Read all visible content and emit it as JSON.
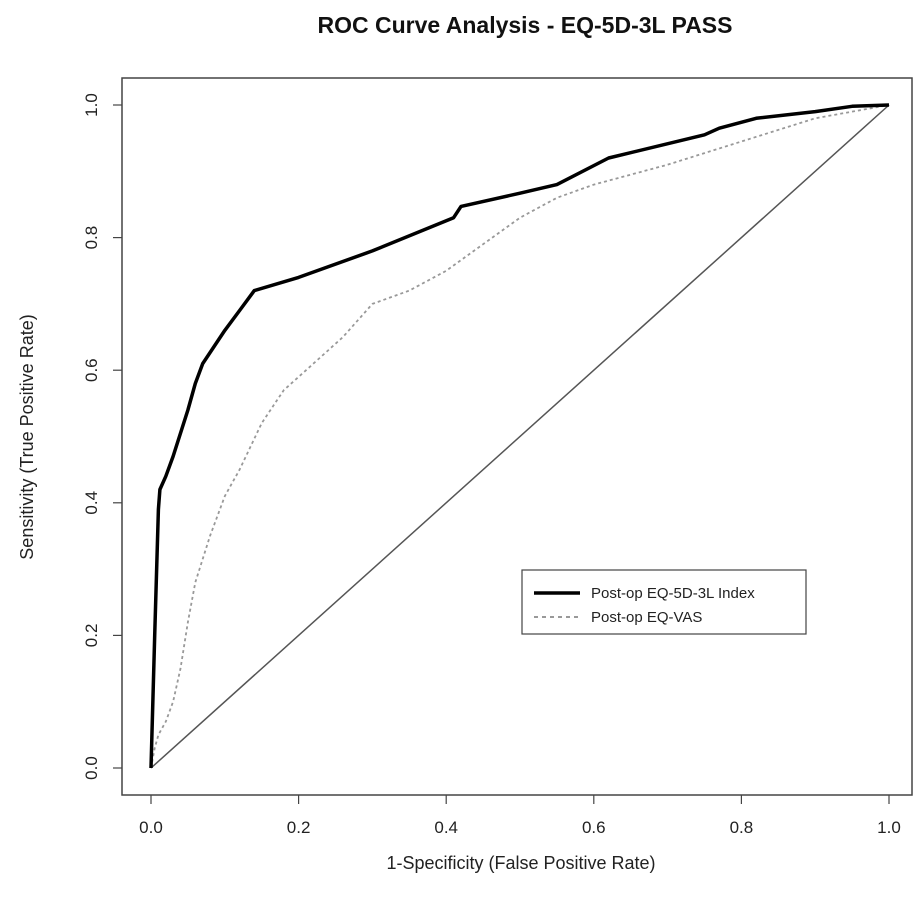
{
  "chart_data": {
    "type": "line",
    "title": "ROC Curve Analysis - EQ-5D-3L PASS",
    "xlabel": "1-Specificity (False Positive Rate)",
    "ylabel": "Sensitivity (True Positive Rate)",
    "xlim": [
      0,
      1
    ],
    "ylim": [
      0,
      1
    ],
    "x_ticks": [
      "0.0",
      "0.2",
      "0.4",
      "0.6",
      "0.8",
      "1.0"
    ],
    "y_ticks": [
      "0.0",
      "0.2",
      "0.4",
      "0.6",
      "0.8",
      "1.0"
    ],
    "grid": false,
    "legend_position": "center-right",
    "series": [
      {
        "name": "Post-op EQ-5D-3L Index",
        "style": "solid",
        "color": "#000000",
        "points": [
          [
            0.0,
            0.0
          ],
          [
            0.005,
            0.2
          ],
          [
            0.01,
            0.39
          ],
          [
            0.012,
            0.42
          ],
          [
            0.02,
            0.44
          ],
          [
            0.03,
            0.47
          ],
          [
            0.05,
            0.54
          ],
          [
            0.06,
            0.58
          ],
          [
            0.07,
            0.61
          ],
          [
            0.1,
            0.66
          ],
          [
            0.12,
            0.69
          ],
          [
            0.14,
            0.72
          ],
          [
            0.2,
            0.74
          ],
          [
            0.3,
            0.78
          ],
          [
            0.41,
            0.83
          ],
          [
            0.42,
            0.847
          ],
          [
            0.5,
            0.867
          ],
          [
            0.55,
            0.88
          ],
          [
            0.62,
            0.92
          ],
          [
            0.75,
            0.955
          ],
          [
            0.77,
            0.965
          ],
          [
            0.82,
            0.98
          ],
          [
            0.9,
            0.99
          ],
          [
            0.95,
            0.998
          ],
          [
            1.0,
            1.0
          ]
        ]
      },
      {
        "name": "Post-op EQ-VAS",
        "style": "dashed",
        "color": "#999999",
        "points": [
          [
            0.0,
            0.0
          ],
          [
            0.005,
            0.03
          ],
          [
            0.01,
            0.05
          ],
          [
            0.02,
            0.07
          ],
          [
            0.03,
            0.1
          ],
          [
            0.04,
            0.15
          ],
          [
            0.05,
            0.22
          ],
          [
            0.06,
            0.28
          ],
          [
            0.08,
            0.35
          ],
          [
            0.1,
            0.41
          ],
          [
            0.12,
            0.45
          ],
          [
            0.15,
            0.52
          ],
          [
            0.18,
            0.57
          ],
          [
            0.22,
            0.61
          ],
          [
            0.26,
            0.65
          ],
          [
            0.3,
            0.7
          ],
          [
            0.35,
            0.72
          ],
          [
            0.4,
            0.75
          ],
          [
            0.45,
            0.79
          ],
          [
            0.5,
            0.83
          ],
          [
            0.55,
            0.86
          ],
          [
            0.6,
            0.88
          ],
          [
            0.7,
            0.91
          ],
          [
            0.8,
            0.945
          ],
          [
            0.9,
            0.98
          ],
          [
            1.0,
            1.0
          ]
        ]
      },
      {
        "name": "",
        "style": "reference",
        "color": "#555555",
        "points": [
          [
            0.0,
            0.0
          ],
          [
            1.0,
            1.0
          ]
        ]
      }
    ]
  }
}
